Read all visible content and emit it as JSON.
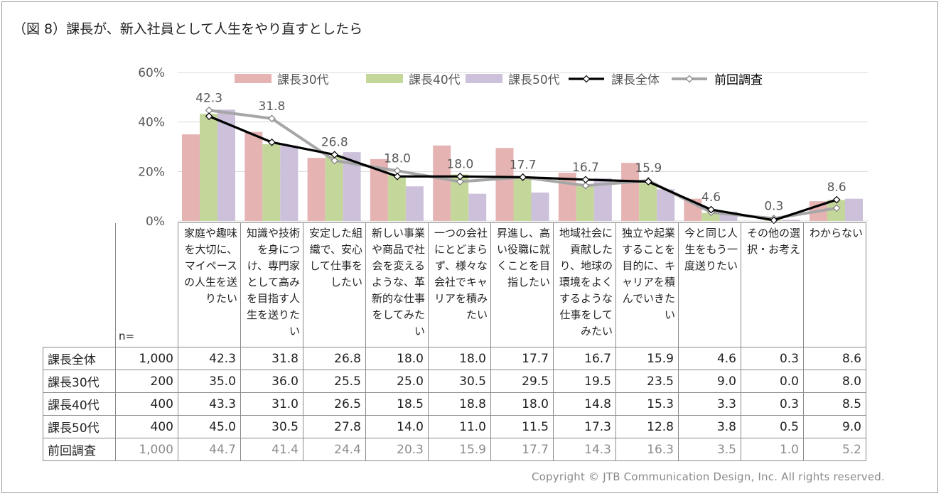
{
  "title": "（図 8）課長が、新入社員として人生をやり直すとしたら",
  "copyright": "Copyright  ©  JTB Communication  Design,  Inc.  All rights  reserved.",
  "colors": {
    "s30": "#e6b3b3",
    "s40": "#c4d79b",
    "s50": "#ccc0da",
    "total": "#000000",
    "prev": "#a6a6a6",
    "grid": "#d9d9d9",
    "axis_text": "#595959"
  },
  "chart_data": {
    "type": "bar",
    "title": "（図 8）課長が、新入社員として人生をやり直すとしたら",
    "ylim": [
      0,
      60
    ],
    "yticks": [
      "0%",
      "20%",
      "40%",
      "60%"
    ],
    "ytick_values": [
      0,
      20,
      40,
      60
    ],
    "legend_position": "top",
    "categories": [
      "家庭や趣味を大切に、マイペースの人生を送りたい",
      "知識や技術を身につけ、専門家として高みを目指す人生を送りたい",
      "安定した組織で、安心して仕事をしたい",
      "新しい事業や商品で社会を変えるような、革新的な仕事をしてみたい",
      "一つの会社にとどまらず、様々な会社でキャリアを積みたい",
      "昇進し、高い役職に就くことを目指したい",
      "地域社会に貢献したり、地球の環境をよくするような仕事をしてみたい",
      "独立や起業することを目的に、キャリアを積んでいきたい",
      "今と同じ人生をもう一度送りたい",
      "その他の選択・お考え",
      "わからない"
    ],
    "series": [
      {
        "key": "s30",
        "name": "課長30代",
        "kind": "bar",
        "n": "200",
        "values": [
          35.0,
          36.0,
          25.5,
          25.0,
          30.5,
          29.5,
          19.5,
          23.5,
          9.0,
          0.0,
          8.0
        ]
      },
      {
        "key": "s40",
        "name": "課長40代",
        "kind": "bar",
        "n": "400",
        "values": [
          43.3,
          31.0,
          26.5,
          18.5,
          18.8,
          18.0,
          14.8,
          15.3,
          3.3,
          0.3,
          8.5
        ]
      },
      {
        "key": "s50",
        "name": "課長50代",
        "kind": "bar",
        "n": "400",
        "values": [
          45.0,
          30.5,
          27.8,
          14.0,
          11.0,
          11.5,
          17.3,
          12.8,
          3.8,
          0.5,
          9.0
        ]
      },
      {
        "key": "total",
        "name": "課長全体",
        "kind": "line",
        "n": "1,000",
        "values": [
          42.3,
          31.8,
          26.8,
          18.0,
          18.0,
          17.7,
          16.7,
          15.9,
          4.6,
          0.3,
          8.6
        ]
      },
      {
        "key": "prev",
        "name": "前回調査",
        "kind": "line",
        "n": "1,000",
        "values": [
          44.7,
          41.4,
          24.4,
          20.3,
          15.9,
          17.7,
          14.3,
          16.3,
          3.5,
          1.0,
          5.2
        ]
      }
    ],
    "data_labels": [
      "42.3",
      "31.8",
      "26.8",
      "18.0",
      "18.0",
      "17.7",
      "16.7",
      "15.9",
      "4.6",
      "0.3",
      "8.6"
    ]
  },
  "table": {
    "n_header": "n=",
    "row_order": [
      "total",
      "s30",
      "s40",
      "s50",
      "prev"
    ],
    "rows": [
      {
        "label": "課長全体",
        "n": "1,000",
        "values": [
          "42.3",
          "31.8",
          "26.8",
          "18.0",
          "18.0",
          "17.7",
          "16.7",
          "15.9",
          "4.6",
          "0.3",
          "8.6"
        ]
      },
      {
        "label": "課長30代",
        "n": "200",
        "values": [
          "35.0",
          "36.0",
          "25.5",
          "25.0",
          "30.5",
          "29.5",
          "19.5",
          "23.5",
          "9.0",
          "0.0",
          "8.0"
        ]
      },
      {
        "label": "課長40代",
        "n": "400",
        "values": [
          "43.3",
          "31.0",
          "26.5",
          "18.5",
          "18.8",
          "18.0",
          "14.8",
          "15.3",
          "3.3",
          "0.3",
          "8.5"
        ]
      },
      {
        "label": "課長50代",
        "n": "400",
        "values": [
          "45.0",
          "30.5",
          "27.8",
          "14.0",
          "11.0",
          "11.5",
          "17.3",
          "12.8",
          "3.8",
          "0.5",
          "9.0"
        ]
      },
      {
        "label": "前回調査",
        "n": "1,000",
        "values": [
          "44.7",
          "41.4",
          "24.4",
          "20.3",
          "15.9",
          "17.7",
          "14.3",
          "16.3",
          "3.5",
          "1.0",
          "5.2"
        ]
      }
    ]
  }
}
